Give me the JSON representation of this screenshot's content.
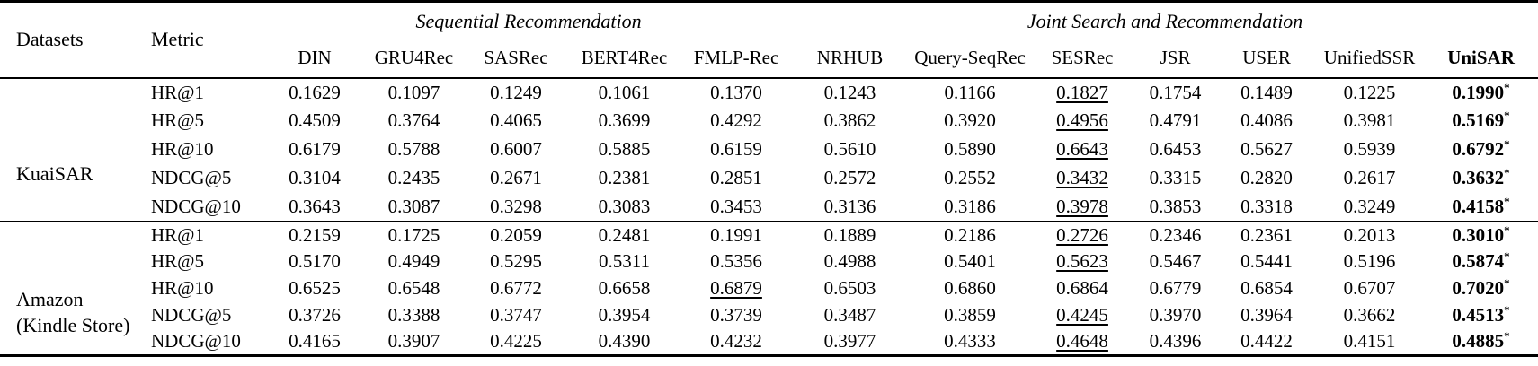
{
  "page": {
    "background": "#ffffff",
    "text_color": "#000000"
  },
  "table": {
    "header": {
      "datasets": "Datasets",
      "metric": "Metric"
    },
    "groups": [
      {
        "label": "Sequential Recommendation",
        "models": [
          "DIN",
          "GRU4Rec",
          "SASRec",
          "BERT4Rec",
          "FMLP-Rec"
        ]
      },
      {
        "label": "Joint Search and Recommendation",
        "models": [
          "NRHUB",
          "Query-SeqRec",
          "SESRec",
          "JSR",
          "USER",
          "UnifiedSSR",
          "UniSAR"
        ]
      }
    ],
    "emphasized_model": "UniSAR",
    "best_marker": "*",
    "sections": [
      {
        "dataset": "KuaiSAR",
        "rows": [
          {
            "metric": "HR@1",
            "values": [
              "0.1629",
              "0.1097",
              "0.1249",
              "0.1061",
              "0.1370",
              "0.1243",
              "0.1166",
              "0.1827",
              "0.1754",
              "0.1489",
              "0.1225",
              "0.1990"
            ],
            "best_index": 11,
            "second_best_index": 7
          },
          {
            "metric": "HR@5",
            "values": [
              "0.4509",
              "0.3764",
              "0.4065",
              "0.3699",
              "0.4292",
              "0.3862",
              "0.3920",
              "0.4956",
              "0.4791",
              "0.4086",
              "0.3981",
              "0.5169"
            ],
            "best_index": 11,
            "second_best_index": 7
          },
          {
            "metric": "HR@10",
            "values": [
              "0.6179",
              "0.5788",
              "0.6007",
              "0.5885",
              "0.6159",
              "0.5610",
              "0.5890",
              "0.6643",
              "0.6453",
              "0.5627",
              "0.5939",
              "0.6792"
            ],
            "best_index": 11,
            "second_best_index": 7
          },
          {
            "metric": "NDCG@5",
            "values": [
              "0.3104",
              "0.2435",
              "0.2671",
              "0.2381",
              "0.2851",
              "0.2572",
              "0.2552",
              "0.3432",
              "0.3315",
              "0.2820",
              "0.2617",
              "0.3632"
            ],
            "best_index": 11,
            "second_best_index": 7
          },
          {
            "metric": "NDCG@10",
            "values": [
              "0.3643",
              "0.3087",
              "0.3298",
              "0.3083",
              "0.3453",
              "0.3136",
              "0.3186",
              "0.3978",
              "0.3853",
              "0.3318",
              "0.3249",
              "0.4158"
            ],
            "best_index": 11,
            "second_best_index": 7
          }
        ]
      },
      {
        "dataset": "Amazon\n(Kindle Store)",
        "rows": [
          {
            "metric": "HR@1",
            "values": [
              "0.2159",
              "0.1725",
              "0.2059",
              "0.2481",
              "0.1991",
              "0.1889",
              "0.2186",
              "0.2726",
              "0.2346",
              "0.2361",
              "0.2013",
              "0.3010"
            ],
            "best_index": 11,
            "second_best_index": 7
          },
          {
            "metric": "HR@5",
            "values": [
              "0.5170",
              "0.4949",
              "0.5295",
              "0.5311",
              "0.5356",
              "0.4988",
              "0.5401",
              "0.5623",
              "0.5467",
              "0.5441",
              "0.5196",
              "0.5874"
            ],
            "best_index": 11,
            "second_best_index": 7
          },
          {
            "metric": "HR@10",
            "values": [
              "0.6525",
              "0.6548",
              "0.6772",
              "0.6658",
              "0.6879",
              "0.6503",
              "0.6860",
              "0.6864",
              "0.6779",
              "0.6854",
              "0.6707",
              "0.7020"
            ],
            "best_index": 11,
            "second_best_index": 4
          },
          {
            "metric": "NDCG@5",
            "values": [
              "0.3726",
              "0.3388",
              "0.3747",
              "0.3954",
              "0.3739",
              "0.3487",
              "0.3859",
              "0.4245",
              "0.3970",
              "0.3964",
              "0.3662",
              "0.4513"
            ],
            "best_index": 11,
            "second_best_index": 7
          },
          {
            "metric": "NDCG@10",
            "values": [
              "0.4165",
              "0.3907",
              "0.4225",
              "0.4390",
              "0.4232",
              "0.3977",
              "0.4333",
              "0.4648",
              "0.4396",
              "0.4422",
              "0.4151",
              "0.4885"
            ],
            "best_index": 11,
            "second_best_index": 7
          }
        ]
      }
    ]
  }
}
